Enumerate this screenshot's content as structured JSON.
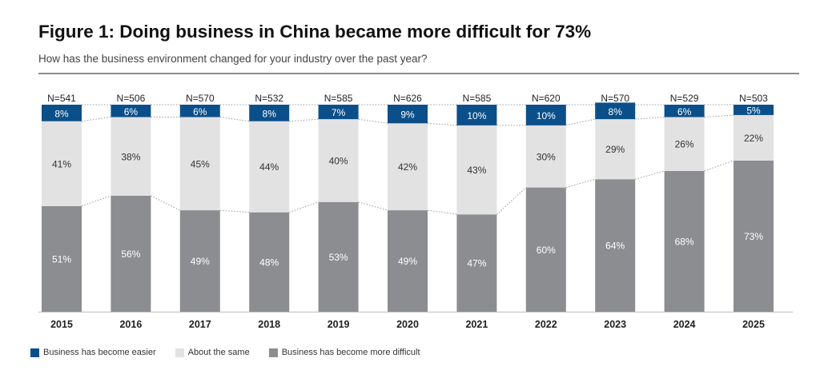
{
  "header": {
    "title": "Figure 1: Doing business in China became more difficult for 73%",
    "subtitle": "How has the business environment changed for your industry over the past year?"
  },
  "colors": {
    "easier": "#0b4f8a",
    "same": "#e2e2e2",
    "difficult": "#8b8d91"
  },
  "chart_data": {
    "type": "bar",
    "stacked": true,
    "title": "Figure 1: Doing business in China became more difficult for 73%",
    "subtitle": "How has the business environment changed for your industry over the past year?",
    "categories": [
      "2015",
      "2016",
      "2017",
      "2018",
      "2019",
      "2020",
      "2021",
      "2022",
      "2023",
      "2024",
      "2025"
    ],
    "sample_sizes": [
      "N=541",
      "N=506",
      "N=570",
      "N=532",
      "N=585",
      "N=626",
      "N=585",
      "N=620",
      "N=570",
      "N=529",
      "N=503"
    ],
    "series": [
      {
        "name": "Business has become more difficult",
        "values": [
          51,
          56,
          49,
          48,
          53,
          49,
          47,
          60,
          64,
          68,
          73
        ]
      },
      {
        "name": "About the same",
        "values": [
          41,
          38,
          45,
          44,
          40,
          42,
          43,
          30,
          29,
          26,
          22
        ]
      },
      {
        "name": "Business has become easier",
        "values": [
          8,
          6,
          6,
          8,
          7,
          9,
          10,
          10,
          8,
          6,
          5
        ]
      }
    ],
    "xlabel": "",
    "ylabel": "",
    "ylim": [
      0,
      100
    ],
    "grid": false,
    "legend_position": "bottom-left"
  }
}
